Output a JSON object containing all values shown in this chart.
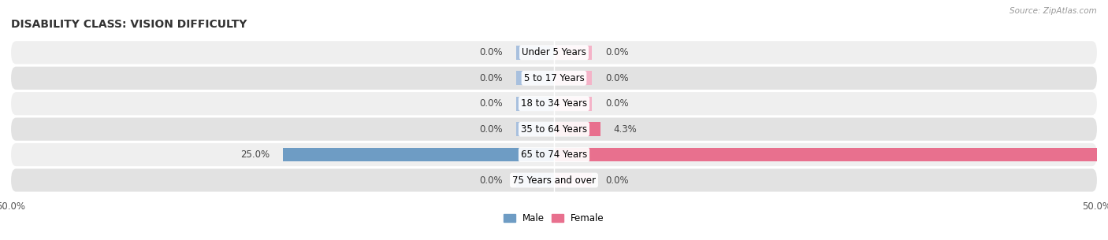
{
  "title": "DISABILITY CLASS: VISION DIFFICULTY",
  "source": "Source: ZipAtlas.com",
  "categories": [
    "Under 5 Years",
    "5 to 17 Years",
    "18 to 34 Years",
    "35 to 64 Years",
    "65 to 74 Years",
    "75 Years and over"
  ],
  "male_values": [
    0.0,
    0.0,
    0.0,
    0.0,
    25.0,
    0.0
  ],
  "female_values": [
    0.0,
    0.0,
    0.0,
    4.3,
    50.0,
    0.0
  ],
  "xlim": [
    -50,
    50
  ],
  "male_bar_color": "#a8c0de",
  "female_bar_color": "#f4b3c8",
  "male_bar_color_strong": "#6e9cc4",
  "female_bar_color_strong": "#e8708e",
  "row_bg_light": "#efefef",
  "row_bg_dark": "#e2e2e2",
  "label_fontsize": 8.5,
  "title_fontsize": 10,
  "tick_label_fontsize": 8.5,
  "bar_height": 0.55,
  "legend_male_color": "#6e9cc4",
  "legend_female_color": "#e8708e",
  "min_bar_width": 3.5
}
